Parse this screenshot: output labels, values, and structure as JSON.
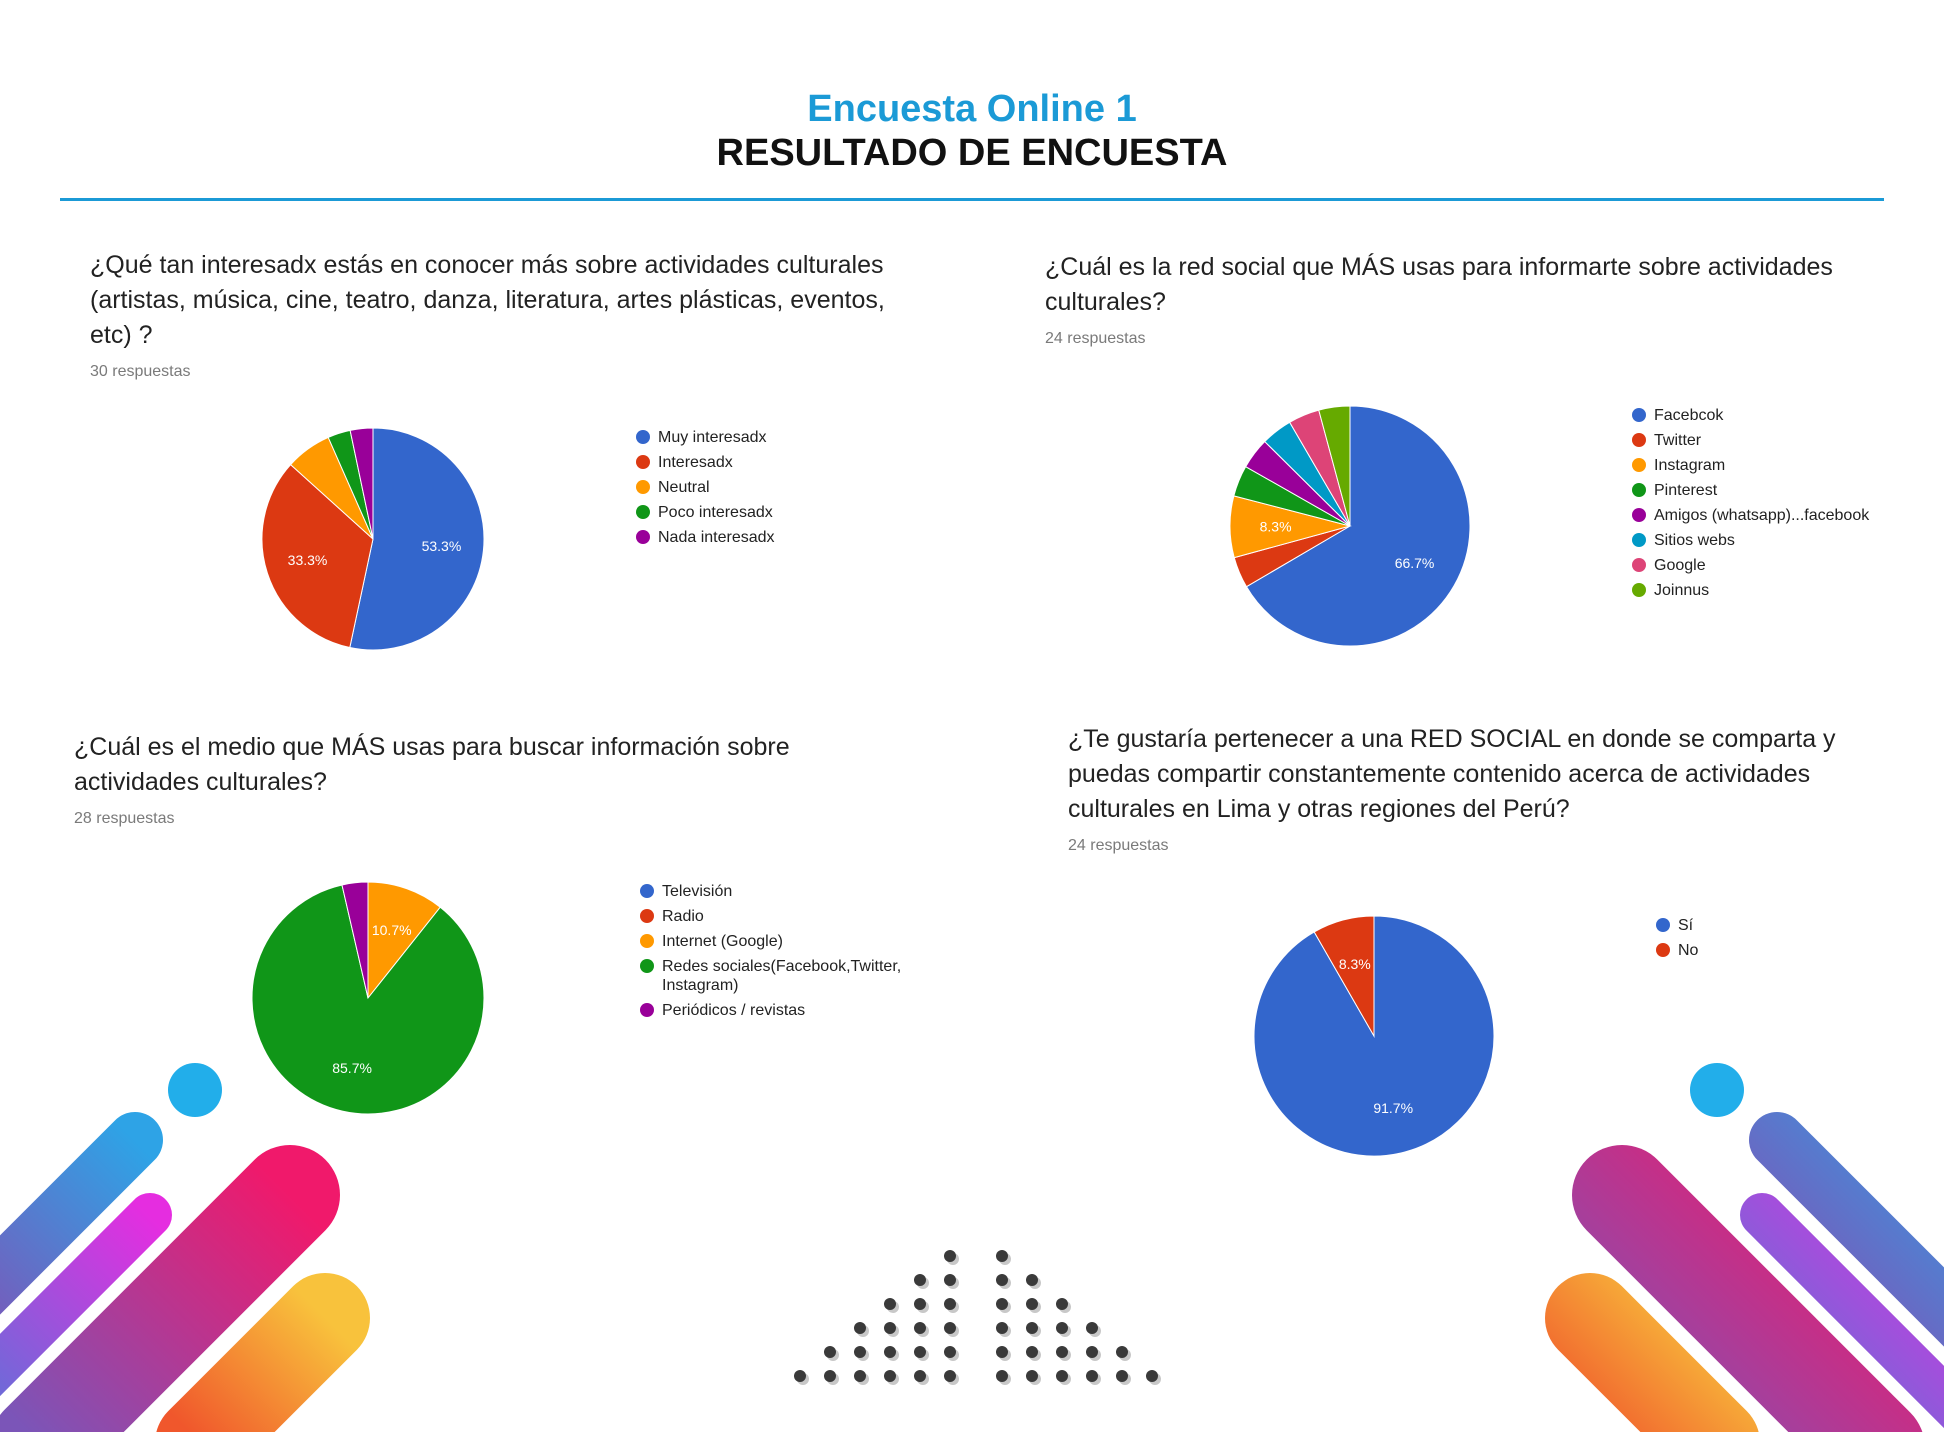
{
  "header": {
    "subtitle": "Encuesta Online 1",
    "title": "RESULTADO DE ENCUESTA"
  },
  "colors": {
    "accent": "#1b9ad6",
    "blue": "#3366cc",
    "red": "#dc3912",
    "orange": "#ff9900",
    "green": "#109618",
    "purple": "#990099",
    "teal": "#0099c6",
    "pink": "#dd4477",
    "lime": "#66aa00"
  },
  "chart_data": [
    {
      "type": "pie",
      "title": "¿Qué tan interesadx estás en conocer más sobre actividades culturales (artistas, música, cine, teatro, danza, literatura, artes plásticas, eventos, etc) ?",
      "subtitle": "30 respuestas",
      "categories": [
        "Muy interesadx",
        "Interesadx",
        "Neutral",
        "Poco interesadx",
        "Nada interesadx"
      ],
      "values": [
        53.3,
        33.3,
        6.7,
        3.3,
        3.3
      ],
      "colors": [
        "#3366cc",
        "#dc3912",
        "#ff9900",
        "#109618",
        "#990099"
      ],
      "data_labels": [
        "53.3%",
        "33.3%",
        "",
        "",
        ""
      ],
      "legend": "right"
    },
    {
      "type": "pie",
      "title": "¿Cuál es la red social que MÁS usas para informarte sobre actividades culturales?",
      "subtitle": "24 respuestas",
      "categories": [
        "Facebcok",
        "Twitter",
        "Instagram",
        "Pinterest",
        "Amigos (whatsapp)...facebook",
        "Sitios webs",
        "Google",
        "Joinnus"
      ],
      "values": [
        66.7,
        4.2,
        8.3,
        4.2,
        4.2,
        4.2,
        4.2,
        4.2
      ],
      "colors": [
        "#3366cc",
        "#dc3912",
        "#ff9900",
        "#109618",
        "#990099",
        "#0099c6",
        "#dd4477",
        "#66aa00"
      ],
      "data_labels": [
        "66.7%",
        "",
        "8.3%",
        "",
        "",
        "",
        "",
        ""
      ],
      "legend": "right"
    },
    {
      "type": "pie",
      "title": "¿Cuál es el medio que MÁS usas para buscar información sobre actividades culturales?",
      "subtitle": "28 respuestas",
      "categories": [
        "Televisión",
        "Radio",
        "Internet (Google)",
        "Redes sociales(Facebook,Twitter, Instagram)",
        "Periódicos / revistas"
      ],
      "values": [
        0,
        0,
        10.7,
        85.7,
        3.6
      ],
      "colors": [
        "#3366cc",
        "#dc3912",
        "#ff9900",
        "#109618",
        "#990099"
      ],
      "data_labels": [
        "",
        "",
        "10.7%",
        "85.7%",
        ""
      ],
      "legend": "right"
    },
    {
      "type": "pie",
      "title": "¿Te gustaría pertenecer a una RED SOCIAL en donde se comparta y puedas compartir constantemente contenido acerca de actividades culturales en Lima y otras regiones del Perú?",
      "subtitle": "24 respuestas",
      "categories": [
        "Sí",
        "No"
      ],
      "values": [
        91.7,
        8.3
      ],
      "colors": [
        "#3366cc",
        "#dc3912"
      ],
      "data_labels": [
        "91.7%",
        "8.3%"
      ],
      "legend": "right"
    }
  ]
}
